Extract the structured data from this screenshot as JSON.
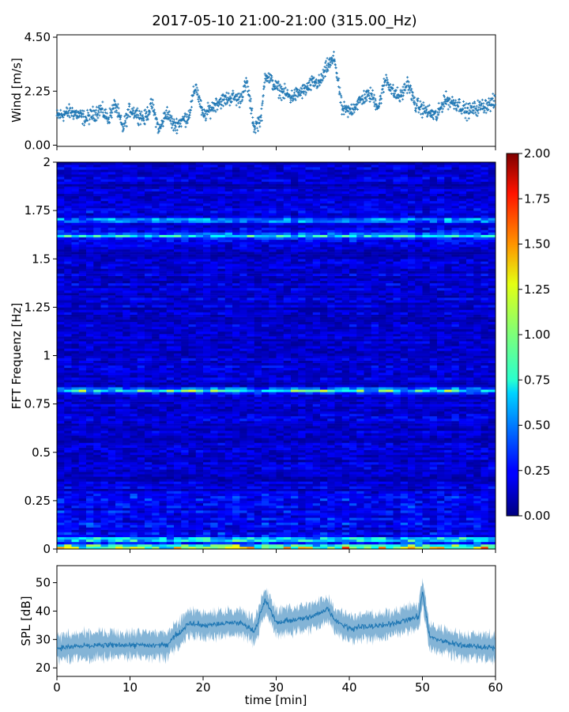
{
  "title": "2017-05-10 21:00-21:00 (315.00_Hz)",
  "colors": {
    "series": "#1f77b4",
    "axes": "#000000"
  },
  "chart_data": [
    {
      "type": "scatter",
      "panel": "wind",
      "ylabel": "Wind [m/s]",
      "ylim": [
        -0.05,
        4.6
      ],
      "yticks": [
        "0.00",
        "2.25",
        "4.50"
      ],
      "ytick_values": [
        0,
        2.25,
        4.5
      ],
      "xlim": [
        0,
        60
      ],
      "marker": "+",
      "trend": {
        "x": [
          0,
          2,
          4,
          6,
          7,
          8,
          9,
          10,
          12,
          13,
          14,
          15,
          16,
          17,
          18,
          19,
          20,
          22,
          24,
          25,
          26,
          27,
          28,
          28.5,
          30,
          32,
          34,
          35,
          36,
          37,
          38,
          39,
          40,
          42,
          43,
          44,
          45,
          46,
          47,
          48,
          49,
          50,
          52,
          53,
          55,
          56,
          58,
          60
        ],
        "y": [
          1.2,
          1.4,
          1.1,
          1.5,
          1.1,
          1.7,
          0.7,
          1.5,
          1.1,
          1.7,
          0.6,
          1.4,
          0.8,
          1.0,
          1.2,
          2.5,
          1.2,
          1.8,
          2.0,
          1.9,
          2.6,
          0.7,
          1.2,
          3.0,
          2.4,
          2.0,
          2.3,
          2.6,
          2.6,
          3.3,
          3.6,
          1.5,
          1.4,
          2.0,
          2.1,
          1.6,
          2.8,
          2.2,
          2.0,
          2.6,
          1.7,
          1.5,
          1.2,
          1.9,
          1.7,
          1.4,
          1.6,
          1.8
        ]
      }
    },
    {
      "type": "heatmap",
      "panel": "spectrogram",
      "ylabel": "FFT Frequenz [Hz]",
      "ylim": [
        0,
        2
      ],
      "yticks": [
        "0",
        "0.25",
        "0.5",
        "0.75",
        "1",
        "1.25",
        "1.5",
        "1.75",
        "2"
      ],
      "ytick_values": [
        0,
        0.25,
        0.5,
        0.75,
        1,
        1.25,
        1.5,
        1.75,
        2
      ],
      "xlim": [
        0,
        60
      ],
      "colorbar": {
        "range": [
          0,
          2
        ],
        "ticks": [
          "0.00",
          "0.25",
          "0.50",
          "0.75",
          "1.00",
          "1.25",
          "1.50",
          "1.75",
          "2.00"
        ],
        "tick_values": [
          0,
          0.25,
          0.5,
          0.75,
          1,
          1.25,
          1.5,
          1.75,
          2
        ],
        "colormap": "jet"
      },
      "bands": [
        {
          "freq": 0.01,
          "level": 1.3
        },
        {
          "freq": 0.05,
          "level": 0.75
        },
        {
          "freq": 0.82,
          "level": 0.85
        },
        {
          "freq": 1.62,
          "level": 0.6
        },
        {
          "freq": 1.7,
          "level": 0.5
        }
      ],
      "background_level": 0.15
    },
    {
      "type": "line",
      "panel": "spl",
      "ylabel": "SPL [dB]",
      "xlabel": "time [min]",
      "ylim": [
        17,
        56
      ],
      "yticks": [
        "20",
        "30",
        "40",
        "50"
      ],
      "ytick_values": [
        20,
        30,
        40,
        50
      ],
      "xlim": [
        0,
        60
      ],
      "xticks": [
        "0",
        "10",
        "20",
        "30",
        "40",
        "50",
        "60"
      ],
      "xtick_values": [
        0,
        10,
        20,
        30,
        40,
        50,
        60
      ],
      "trend": {
        "x": [
          0,
          5,
          10,
          15,
          16,
          17,
          18,
          20,
          25,
          27,
          28,
          28.5,
          30,
          35,
          37,
          38,
          40,
          45,
          48,
          49.5,
          50,
          51,
          52,
          55,
          60
        ],
        "y": [
          27,
          28,
          28,
          28,
          31,
          33,
          36,
          35,
          36,
          33,
          40,
          44,
          36,
          38,
          41,
          37,
          34,
          35,
          37,
          38,
          47,
          31,
          30,
          28,
          27
        ]
      }
    }
  ]
}
